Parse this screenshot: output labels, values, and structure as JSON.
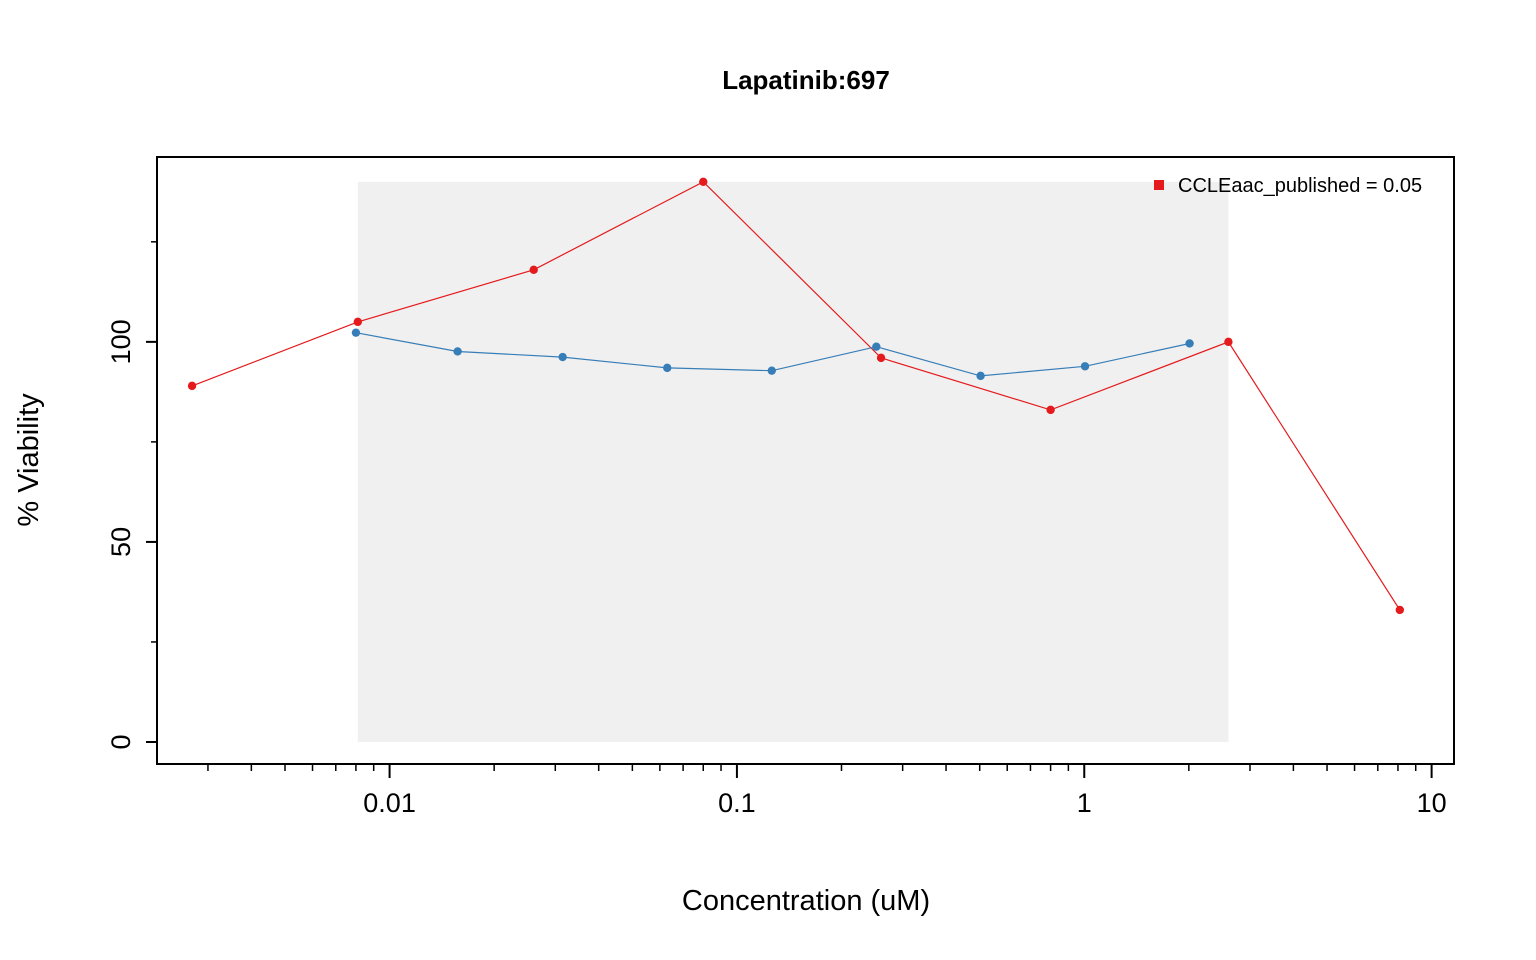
{
  "chart_data": {
    "type": "line",
    "title": "Lapatinib:697",
    "xlabel": "Concentration (uM)",
    "ylabel": "% Viability",
    "x_scale": "log10",
    "xlim": [
      0.00214,
      11.6
    ],
    "ylim": [
      -5.5,
      146.2
    ],
    "x_ticks": [
      {
        "value": 0.01,
        "label": "0.01"
      },
      {
        "value": 0.1,
        "label": "0.1"
      },
      {
        "value": 1,
        "label": "1"
      },
      {
        "value": 10,
        "label": "10"
      }
    ],
    "y_ticks": [
      {
        "value": 0,
        "label": "0"
      },
      {
        "value": 50,
        "label": "50"
      },
      {
        "value": 100,
        "label": "100"
      }
    ],
    "y_minor_ticks": [
      25,
      75,
      125
    ],
    "shaded_region": {
      "x": [
        0.0081,
        2.6
      ],
      "y": [
        0,
        140
      ],
      "color": "#f0f0f0"
    },
    "legend": {
      "position": "top-right",
      "entries": [
        {
          "label": "CCLEaac_published = 0.05",
          "color": "#e41a1c"
        }
      ]
    },
    "series": [
      {
        "color": "#e41a1c",
        "x": [
          0.0027,
          0.0081,
          0.026,
          0.08,
          0.26,
          0.8,
          2.6,
          8.1
        ],
        "y": [
          89,
          105,
          118,
          140,
          96,
          83,
          100,
          33
        ]
      },
      {
        "color": "#377eb8",
        "x": [
          0.008,
          0.0157,
          0.0315,
          0.063,
          0.126,
          0.252,
          0.503,
          1.005,
          2.01
        ],
        "y": [
          102.3,
          97.6,
          96.2,
          93.5,
          92.8,
          98.8,
          91.5,
          93.9,
          99.6
        ]
      }
    ]
  }
}
